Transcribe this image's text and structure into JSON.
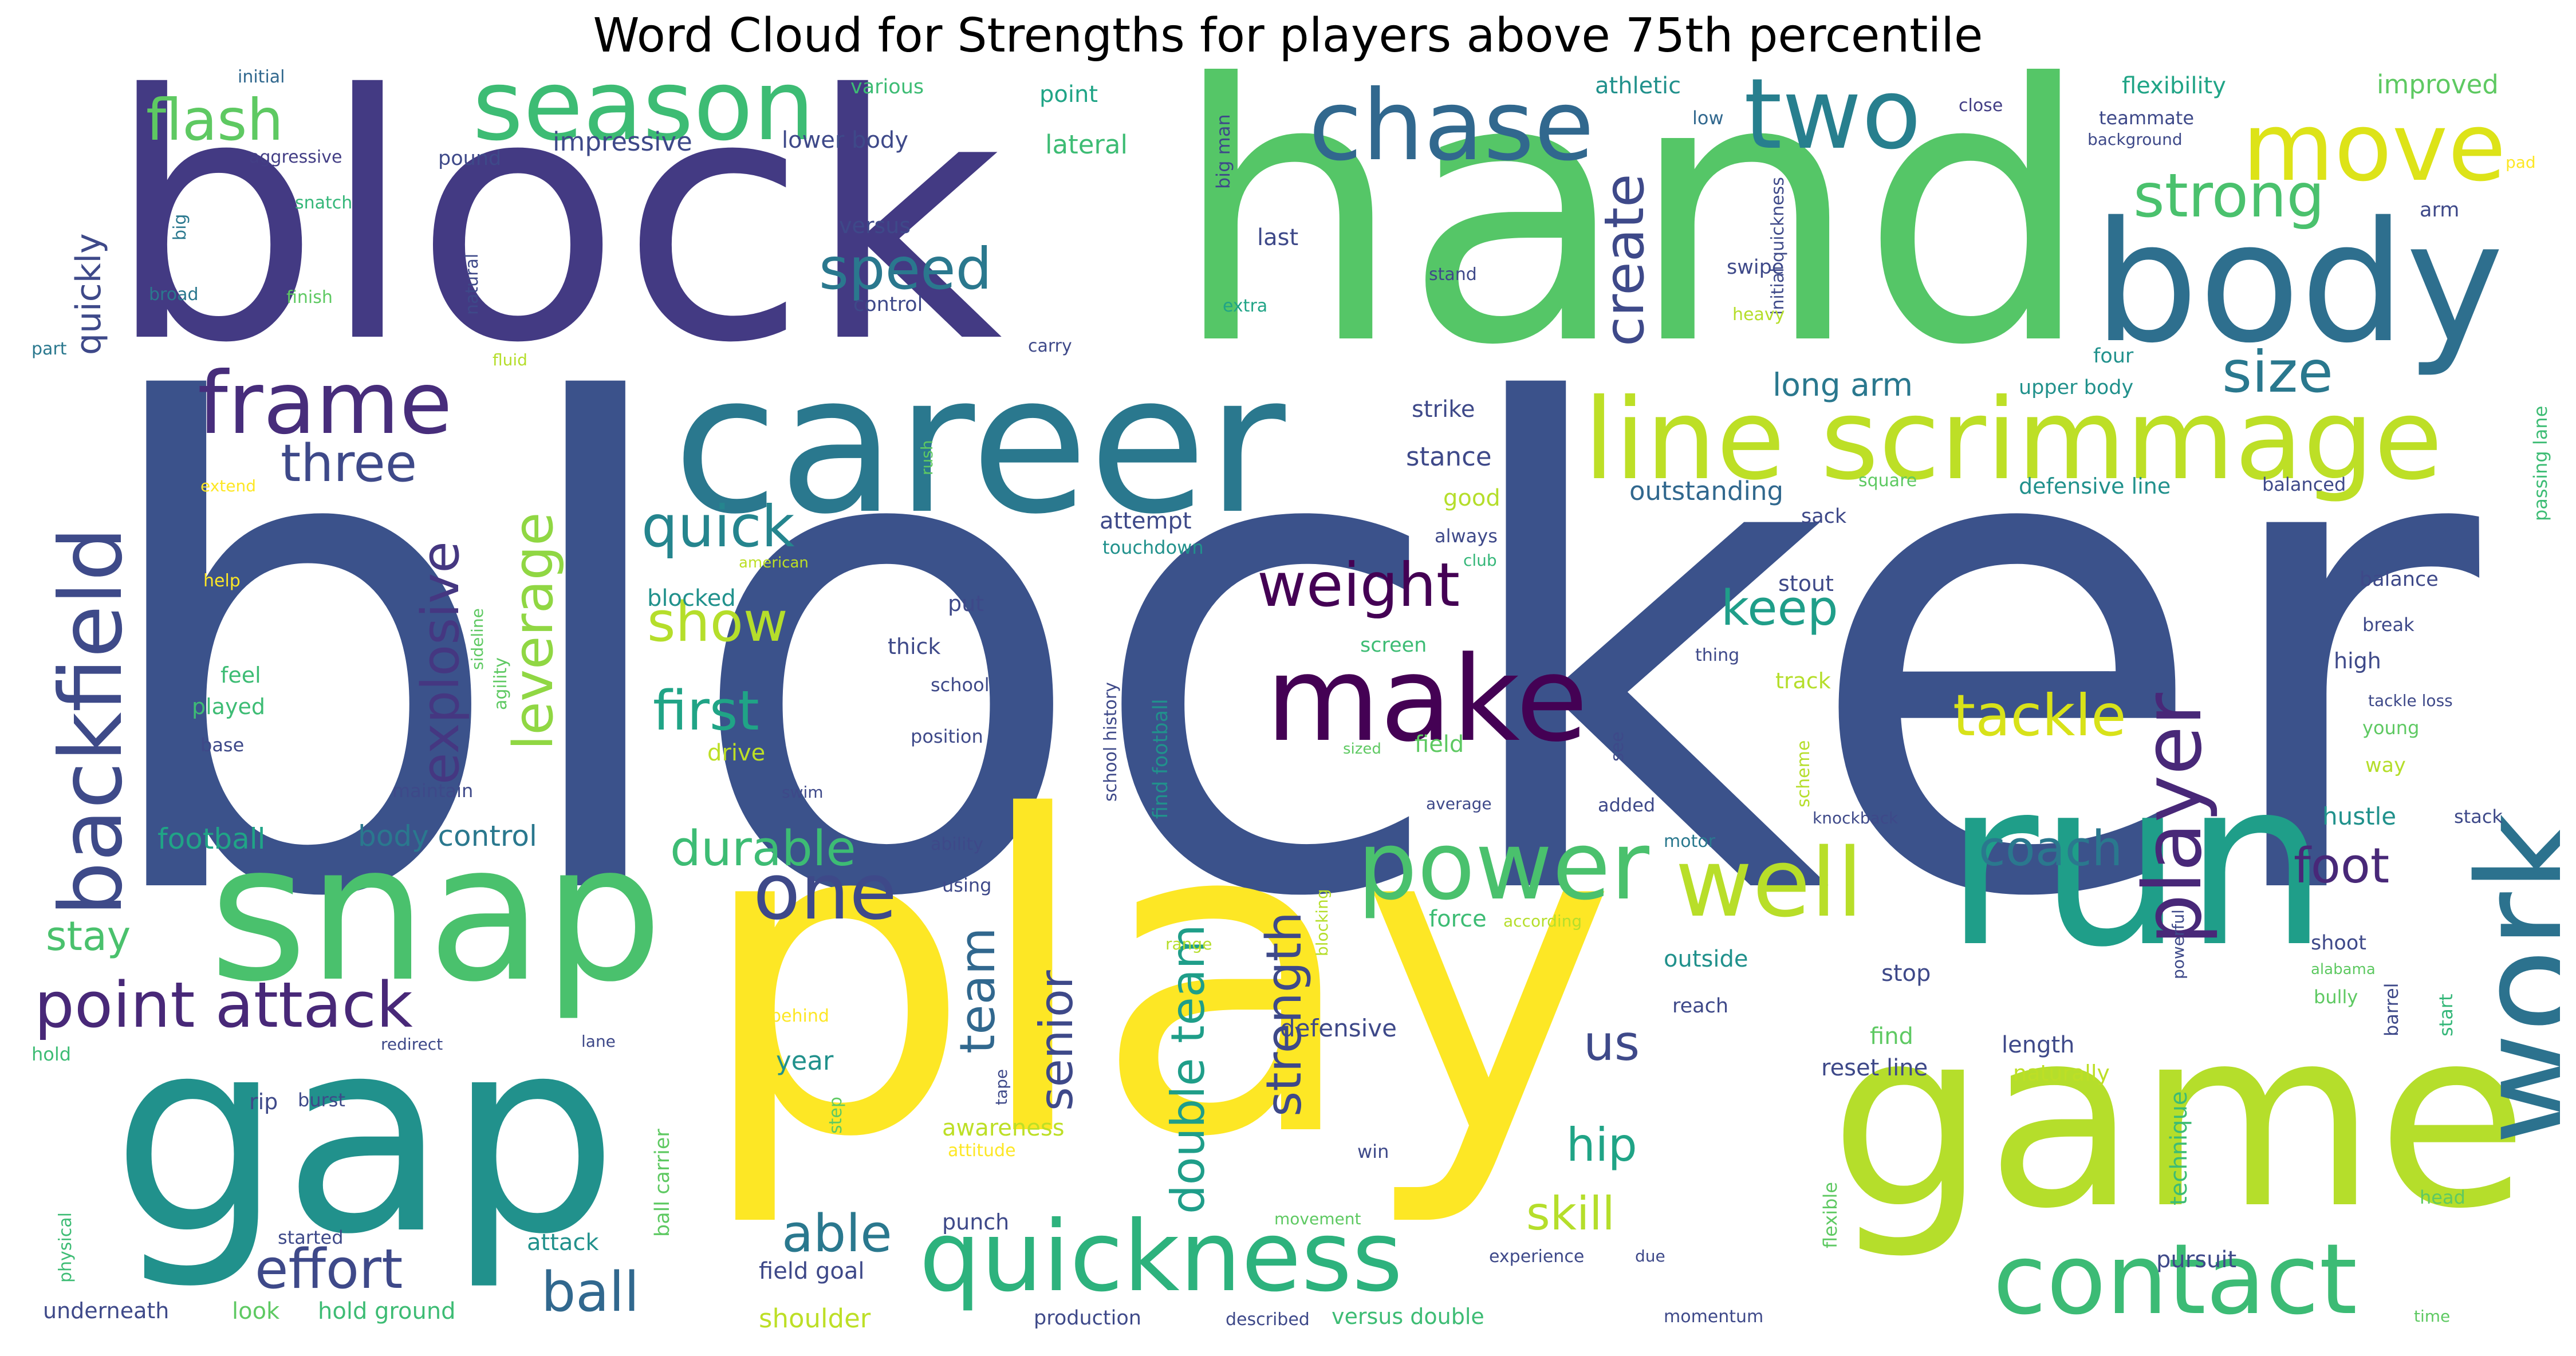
{
  "title": "Word Cloud for Strengths for players above 75th percentile",
  "palette": [
    "#440154",
    "#443983",
    "#31688e",
    "#21918c",
    "#35b779",
    "#90d743",
    "#fde725"
  ],
  "words": {
    "blocker": "blocker",
    "block": "block",
    "hand": "hand",
    "play": "play",
    "career": "career",
    "game": "game",
    "gap": "gap",
    "snap": "snap",
    "run": "run",
    "work": "work",
    "body": "body",
    "line_scrimmage": "line scrimmage",
    "backfield": "backfield",
    "season": "season",
    "chase": "chase",
    "two": "two",
    "move": "move",
    "frame": "frame",
    "make": "make",
    "power": "power",
    "well": "well",
    "quickness": "quickness",
    "contact": "contact",
    "player": "player",
    "one": "one",
    "flash": "flash",
    "speed": "speed",
    "strong": "strong",
    "size": "size",
    "create": "create",
    "quick": "quick",
    "three": "three",
    "explosive": "explosive",
    "leverage": "leverage",
    "weight": "weight",
    "show": "show",
    "first": "first",
    "keep": "keep",
    "tackle": "tackle",
    "point_attack": "point attack",
    "effort": "effort",
    "ball": "ball",
    "able": "able",
    "team": "team",
    "senior": "senior",
    "double_team": "double team",
    "strength": "strength",
    "durable": "durable",
    "coach": "coach",
    "foot": "foot",
    "us": "us",
    "hip": "hip",
    "skill": "skill",
    "stay": "stay",
    "quickly": "quickly",
    "long_arm": "long arm",
    "outstanding": "outstanding",
    "body_control": "body control",
    "football": "football",
    "initial": "initial",
    "aggressive": "aggressive",
    "big": "big",
    "snatch": "snatch",
    "broad": "broad",
    "finish": "finish",
    "natural": "natural",
    "pound": "pound",
    "impressive": "impressive",
    "various": "various",
    "lower_body": "lower body",
    "point": "point",
    "lateral": "lateral",
    "big_man": "big man",
    "athletic": "athletic",
    "low": "low",
    "initial_quickness": "initial quickness",
    "flexibility": "flexibility",
    "improved": "improved",
    "close": "close",
    "teammate": "teammate",
    "background": "background",
    "pad": "pad",
    "last": "last",
    "versus": "versus",
    "control": "control",
    "extra": "extra",
    "stand": "stand",
    "swipe": "swipe",
    "heavy": "heavy",
    "arm": "arm",
    "part": "part",
    "fluid": "fluid",
    "carry": "carry",
    "four": "four",
    "upper_body": "upper body",
    "passing_lane": "passing lane",
    "extend": "extend",
    "rush": "rush",
    "attempt": "attempt",
    "strike": "strike",
    "stance": "stance",
    "good": "good",
    "square": "square",
    "defensive_line": "defensive line",
    "balanced": "balanced",
    "always": "always",
    "club": "club",
    "sack": "sack",
    "touchdown": "touchdown",
    "help": "help",
    "sideline": "sideline",
    "american": "american",
    "agility": "agility",
    "blocked": "blocked",
    "put": "put",
    "thick": "thick",
    "stout": "stout",
    "balance": "balance",
    "break": "break",
    "screen": "screen",
    "thing": "thing",
    "track": "track",
    "high": "high",
    "feel": "feel",
    "played": "played",
    "school": "school",
    "school_history": "school history",
    "find_football": "find football",
    "tackle_loss": "tackle loss",
    "base": "base",
    "drive": "drive",
    "position": "position",
    "sized": "sized",
    "field": "field",
    "see": "see",
    "scheme": "scheme",
    "young": "young",
    "way": "way",
    "maintain": "maintain",
    "swim": "swim",
    "average": "average",
    "added": "added",
    "knockback": "knockback",
    "hustle": "hustle",
    "stack": "stack",
    "ability": "ability",
    "using": "using",
    "motor": "motor",
    "blocking": "blocking",
    "force": "force",
    "according": "according",
    "range": "range",
    "powerful": "powerful",
    "shoot": "shoot",
    "alabama": "alabama",
    "outside": "outside",
    "stop": "stop",
    "reach": "reach",
    "bully": "bully",
    "barrel": "barrel",
    "start": "start",
    "hold": "hold",
    "redirect": "redirect",
    "lane": "lane",
    "rip": "rip",
    "burst": "burst",
    "year": "year",
    "behind": "behind",
    "step": "step",
    "tape": "tape",
    "awareness": "awareness",
    "attitude": "attitude",
    "defensive": "defensive",
    "find": "find",
    "reset_line": "reset line",
    "length": "length",
    "naturally": "naturally",
    "technique": "technique",
    "flexible": "flexible",
    "head": "head",
    "physical": "physical",
    "started": "started",
    "attack": "attack",
    "ball_carrier": "ball carrier",
    "punch": "punch",
    "win": "win",
    "movement": "movement",
    "experience": "experience",
    "due": "due",
    "pursuit": "pursuit",
    "underneath": "underneath",
    "look": "look",
    "hold_ground": "hold ground",
    "field_goal": "field goal",
    "shoulder": "shoulder",
    "production": "production",
    "described": "described",
    "versus_double": "versus double",
    "momentum": "momentum",
    "time": "time"
  }
}
